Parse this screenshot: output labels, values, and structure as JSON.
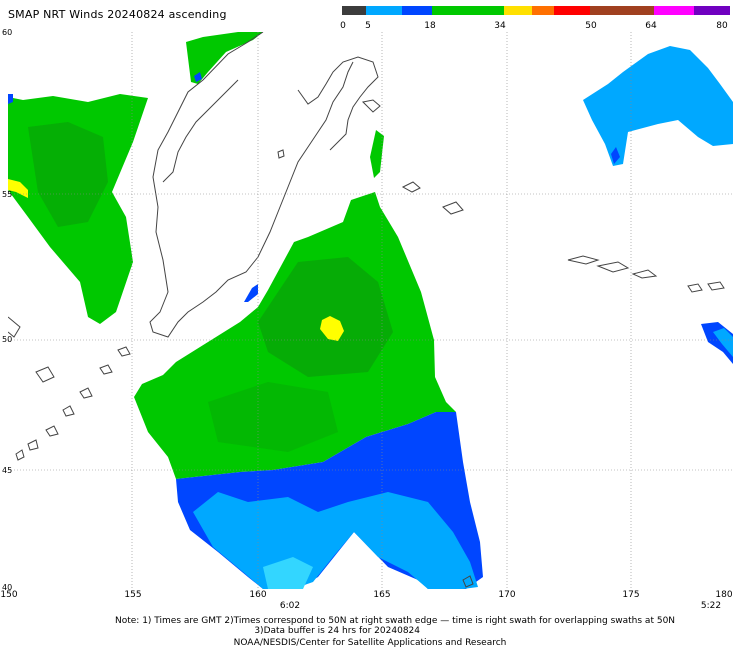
{
  "title": "SMAP NRT Winds 20240824 ascending",
  "colorbar": {
    "labels": [
      "0",
      "5",
      "18",
      "34",
      "50",
      "64",
      "80"
    ],
    "colors": [
      "#3c3c3c",
      "#00a8ff",
      "#0046ff",
      "#00c800",
      "#ffe000",
      "#ff7000",
      "#ff0000",
      "#a04020",
      "#ff00ff",
      "#7000c0"
    ]
  },
  "axes": {
    "lat_labels": [
      "60",
      "55",
      "50",
      "45",
      "40"
    ],
    "lon_labels": [
      "150",
      "155",
      "160",
      "165",
      "170",
      "175",
      "180"
    ]
  },
  "times": [
    "6:02",
    "5:22"
  ],
  "notes": {
    "line1": "Note: 1) Times are GMT 2)Times correspond to 50N at right swath edge — time is right swath for overlapping swaths at 50N",
    "line2": "3)Data buffer is 24 hrs for 20240824",
    "line3": "NOAA/NESDIS/Center for Satellite Applications and Research"
  },
  "wind_colors": {
    "green_dark": "#0a9a0a",
    "green": "#00c800",
    "blue": "#0046ff",
    "light_blue": "#00a8ff",
    "cyan": "#33d6ff",
    "yellow": "#ffff00"
  }
}
